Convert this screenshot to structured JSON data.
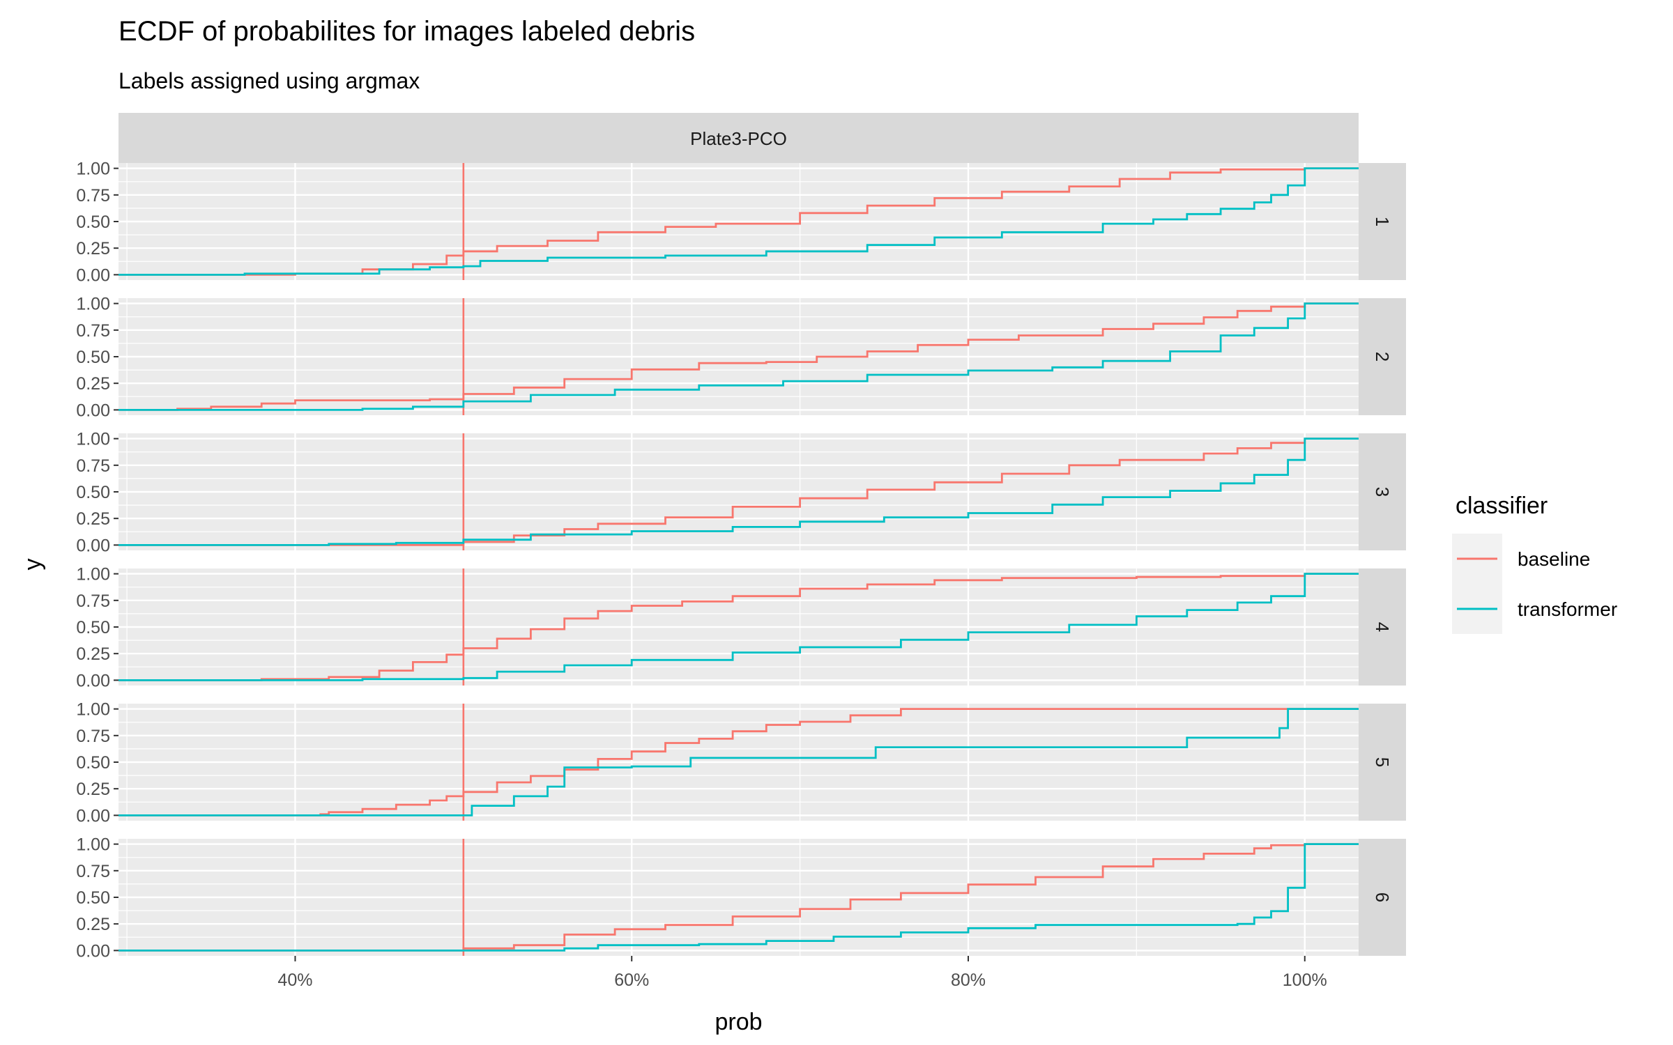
{
  "chart_data": {
    "type": "line",
    "chart_kind": "ecdf-step",
    "title": "ECDF of probabilites for images labeled debris",
    "subtitle": "Labels assigned using argmax",
    "xlabel": "prob",
    "ylabel": "y",
    "facet_column_label": "Plate3-PCO",
    "facet_row_labels": [
      "1",
      "2",
      "3",
      "4",
      "5",
      "6"
    ],
    "x_ticks": [
      "40%",
      "60%",
      "80%",
      "100%"
    ],
    "x_tick_values": [
      0.4,
      0.6,
      0.8,
      1.0
    ],
    "y_ticks": [
      "0.00",
      "0.25",
      "0.50",
      "0.75",
      "1.00"
    ],
    "y_tick_values": [
      0,
      0.25,
      0.5,
      0.75,
      1.0
    ],
    "xlim": [
      0.295,
      1.032
    ],
    "ylim": [
      -0.05,
      1.05
    ],
    "vline": {
      "x": 0.5,
      "color": "#F8766D"
    },
    "grid": true,
    "legend": {
      "title": "classifier",
      "position": "right",
      "entries": [
        {
          "name": "baseline",
          "color": "#F8766D"
        },
        {
          "name": "transformer",
          "color": "#00BFC4"
        }
      ]
    },
    "series": [
      {
        "name": "baseline",
        "color": "#F8766D",
        "panels": [
          {
            "panel": "1",
            "points": [
              [
                0.295,
                0
              ],
              [
                0.4,
                0.01
              ],
              [
                0.44,
                0.05
              ],
              [
                0.47,
                0.1
              ],
              [
                0.49,
                0.18
              ],
              [
                0.5,
                0.22
              ],
              [
                0.52,
                0.27
              ],
              [
                0.55,
                0.32
              ],
              [
                0.58,
                0.4
              ],
              [
                0.62,
                0.45
              ],
              [
                0.65,
                0.48
              ],
              [
                0.7,
                0.58
              ],
              [
                0.74,
                0.65
              ],
              [
                0.78,
                0.72
              ],
              [
                0.82,
                0.78
              ],
              [
                0.86,
                0.83
              ],
              [
                0.89,
                0.9
              ],
              [
                0.92,
                0.96
              ],
              [
                0.95,
                0.99
              ],
              [
                1.0,
                1.0
              ],
              [
                1.032,
                1.0
              ]
            ]
          },
          {
            "panel": "2",
            "points": [
              [
                0.295,
                0
              ],
              [
                0.33,
                0.01
              ],
              [
                0.35,
                0.03
              ],
              [
                0.38,
                0.06
              ],
              [
                0.4,
                0.09
              ],
              [
                0.48,
                0.1
              ],
              [
                0.5,
                0.15
              ],
              [
                0.53,
                0.21
              ],
              [
                0.56,
                0.29
              ],
              [
                0.6,
                0.38
              ],
              [
                0.64,
                0.44
              ],
              [
                0.68,
                0.45
              ],
              [
                0.71,
                0.5
              ],
              [
                0.74,
                0.55
              ],
              [
                0.77,
                0.61
              ],
              [
                0.8,
                0.66
              ],
              [
                0.83,
                0.7
              ],
              [
                0.88,
                0.76
              ],
              [
                0.91,
                0.81
              ],
              [
                0.94,
                0.87
              ],
              [
                0.96,
                0.93
              ],
              [
                0.98,
                0.97
              ],
              [
                1.0,
                1.0
              ],
              [
                1.032,
                1.0
              ]
            ]
          },
          {
            "panel": "3",
            "points": [
              [
                0.295,
                0
              ],
              [
                0.48,
                0.0
              ],
              [
                0.5,
                0.03
              ],
              [
                0.53,
                0.09
              ],
              [
                0.56,
                0.15
              ],
              [
                0.58,
                0.2
              ],
              [
                0.62,
                0.26
              ],
              [
                0.66,
                0.36
              ],
              [
                0.7,
                0.44
              ],
              [
                0.74,
                0.52
              ],
              [
                0.78,
                0.59
              ],
              [
                0.82,
                0.67
              ],
              [
                0.86,
                0.75
              ],
              [
                0.89,
                0.8
              ],
              [
                0.92,
                0.8
              ],
              [
                0.94,
                0.86
              ],
              [
                0.96,
                0.91
              ],
              [
                0.98,
                0.96
              ],
              [
                1.0,
                1.0
              ],
              [
                1.032,
                1.0
              ]
            ]
          },
          {
            "panel": "4",
            "points": [
              [
                0.295,
                0
              ],
              [
                0.38,
                0.01
              ],
              [
                0.42,
                0.03
              ],
              [
                0.45,
                0.09
              ],
              [
                0.47,
                0.17
              ],
              [
                0.49,
                0.24
              ],
              [
                0.5,
                0.3
              ],
              [
                0.52,
                0.39
              ],
              [
                0.54,
                0.48
              ],
              [
                0.56,
                0.58
              ],
              [
                0.58,
                0.65
              ],
              [
                0.6,
                0.7
              ],
              [
                0.63,
                0.74
              ],
              [
                0.66,
                0.79
              ],
              [
                0.7,
                0.86
              ],
              [
                0.74,
                0.9
              ],
              [
                0.78,
                0.94
              ],
              [
                0.82,
                0.96
              ],
              [
                0.86,
                0.96
              ],
              [
                0.9,
                0.97
              ],
              [
                0.95,
                0.98
              ],
              [
                1.0,
                1.0
              ],
              [
                1.032,
                1.0
              ]
            ]
          },
          {
            "panel": "5",
            "points": [
              [
                0.295,
                0
              ],
              [
                0.415,
                0.01
              ],
              [
                0.42,
                0.03
              ],
              [
                0.44,
                0.06
              ],
              [
                0.46,
                0.1
              ],
              [
                0.48,
                0.14
              ],
              [
                0.49,
                0.18
              ],
              [
                0.5,
                0.22
              ],
              [
                0.52,
                0.31
              ],
              [
                0.54,
                0.37
              ],
              [
                0.56,
                0.43
              ],
              [
                0.58,
                0.53
              ],
              [
                0.6,
                0.6
              ],
              [
                0.62,
                0.68
              ],
              [
                0.64,
                0.72
              ],
              [
                0.66,
                0.79
              ],
              [
                0.68,
                0.85
              ],
              [
                0.7,
                0.88
              ],
              [
                0.73,
                0.94
              ],
              [
                0.76,
                1.0
              ],
              [
                1.032,
                1.0
              ]
            ]
          },
          {
            "panel": "6",
            "points": [
              [
                0.295,
                0
              ],
              [
                0.47,
                0.0
              ],
              [
                0.5,
                0.02
              ],
              [
                0.53,
                0.05
              ],
              [
                0.56,
                0.15
              ],
              [
                0.59,
                0.2
              ],
              [
                0.62,
                0.24
              ],
              [
                0.66,
                0.32
              ],
              [
                0.7,
                0.39
              ],
              [
                0.73,
                0.48
              ],
              [
                0.76,
                0.54
              ],
              [
                0.8,
                0.62
              ],
              [
                0.84,
                0.69
              ],
              [
                0.88,
                0.79
              ],
              [
                0.91,
                0.86
              ],
              [
                0.94,
                0.91
              ],
              [
                0.97,
                0.96
              ],
              [
                0.98,
                0.99
              ],
              [
                1.0,
                1.0
              ],
              [
                1.032,
                1.0
              ]
            ]
          }
        ]
      },
      {
        "name": "transformer",
        "color": "#00BFC4",
        "panels": [
          {
            "panel": "1",
            "points": [
              [
                0.295,
                0
              ],
              [
                0.37,
                0.01
              ],
              [
                0.45,
                0.05
              ],
              [
                0.48,
                0.07
              ],
              [
                0.5,
                0.08
              ],
              [
                0.51,
                0.13
              ],
              [
                0.55,
                0.16
              ],
              [
                0.62,
                0.18
              ],
              [
                0.68,
                0.22
              ],
              [
                0.74,
                0.28
              ],
              [
                0.78,
                0.35
              ],
              [
                0.82,
                0.4
              ],
              [
                0.88,
                0.48
              ],
              [
                0.91,
                0.52
              ],
              [
                0.93,
                0.57
              ],
              [
                0.95,
                0.62
              ],
              [
                0.97,
                0.68
              ],
              [
                0.98,
                0.75
              ],
              [
                0.99,
                0.84
              ],
              [
                1.0,
                1.0
              ],
              [
                1.032,
                1.0
              ]
            ]
          },
          {
            "panel": "2",
            "points": [
              [
                0.295,
                0
              ],
              [
                0.44,
                0.01
              ],
              [
                0.47,
                0.03
              ],
              [
                0.5,
                0.08
              ],
              [
                0.54,
                0.14
              ],
              [
                0.59,
                0.19
              ],
              [
                0.64,
                0.23
              ],
              [
                0.69,
                0.27
              ],
              [
                0.74,
                0.33
              ],
              [
                0.8,
                0.37
              ],
              [
                0.85,
                0.4
              ],
              [
                0.88,
                0.46
              ],
              [
                0.92,
                0.55
              ],
              [
                0.95,
                0.7
              ],
              [
                0.97,
                0.77
              ],
              [
                0.99,
                0.86
              ],
              [
                1.0,
                1.0
              ],
              [
                1.032,
                1.0
              ]
            ]
          },
          {
            "panel": "3",
            "points": [
              [
                0.295,
                0
              ],
              [
                0.42,
                0.01
              ],
              [
                0.46,
                0.02
              ],
              [
                0.5,
                0.05
              ],
              [
                0.54,
                0.1
              ],
              [
                0.6,
                0.13
              ],
              [
                0.66,
                0.17
              ],
              [
                0.7,
                0.22
              ],
              [
                0.75,
                0.26
              ],
              [
                0.8,
                0.3
              ],
              [
                0.85,
                0.38
              ],
              [
                0.88,
                0.45
              ],
              [
                0.92,
                0.51
              ],
              [
                0.95,
                0.58
              ],
              [
                0.97,
                0.66
              ],
              [
                0.99,
                0.8
              ],
              [
                1.0,
                1.0
              ],
              [
                1.032,
                1.0
              ]
            ]
          },
          {
            "panel": "4",
            "points": [
              [
                0.295,
                0
              ],
              [
                0.44,
                0.01
              ],
              [
                0.5,
                0.02
              ],
              [
                0.52,
                0.08
              ],
              [
                0.56,
                0.14
              ],
              [
                0.6,
                0.19
              ],
              [
                0.66,
                0.26
              ],
              [
                0.7,
                0.31
              ],
              [
                0.76,
                0.38
              ],
              [
                0.8,
                0.45
              ],
              [
                0.86,
                0.52
              ],
              [
                0.9,
                0.6
              ],
              [
                0.93,
                0.66
              ],
              [
                0.96,
                0.73
              ],
              [
                0.98,
                0.79
              ],
              [
                1.0,
                1.0
              ],
              [
                1.032,
                1.0
              ]
            ]
          },
          {
            "panel": "5",
            "points": [
              [
                0.295,
                0
              ],
              [
                0.5,
                0.0
              ],
              [
                0.505,
                0.09
              ],
              [
                0.53,
                0.18
              ],
              [
                0.55,
                0.27
              ],
              [
                0.56,
                0.45
              ],
              [
                0.6,
                0.46
              ],
              [
                0.635,
                0.54
              ],
              [
                0.745,
                0.64
              ],
              [
                0.93,
                0.73
              ],
              [
                0.985,
                0.82
              ],
              [
                0.99,
                1.0
              ],
              [
                1.032,
                1.0
              ]
            ]
          },
          {
            "panel": "6",
            "points": [
              [
                0.295,
                0
              ],
              [
                0.56,
                0.02
              ],
              [
                0.58,
                0.05
              ],
              [
                0.64,
                0.06
              ],
              [
                0.68,
                0.09
              ],
              [
                0.72,
                0.13
              ],
              [
                0.76,
                0.17
              ],
              [
                0.8,
                0.21
              ],
              [
                0.84,
                0.24
              ],
              [
                0.96,
                0.25
              ],
              [
                0.97,
                0.31
              ],
              [
                0.98,
                0.37
              ],
              [
                0.99,
                0.59
              ],
              [
                1.0,
                1.0
              ],
              [
                1.032,
                1.0
              ]
            ]
          }
        ]
      }
    ]
  }
}
